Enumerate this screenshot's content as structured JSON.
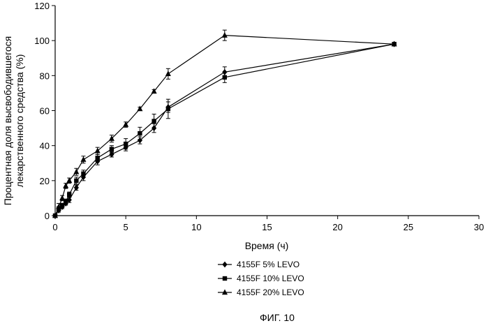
{
  "figure": {
    "caption": "ФИГ. 10"
  },
  "chart_data": {
    "type": "line",
    "title": "",
    "xlabel": "Время (ч)",
    "ylabel_lines": [
      "Процентная доля высвободившегося",
      "лекарственного средства (%)"
    ],
    "xlim": [
      0,
      30
    ],
    "ylim": [
      0,
      120
    ],
    "x_ticks": [
      0,
      5,
      10,
      15,
      20,
      25,
      30
    ],
    "x_tick_labels": [
      "0",
      "5",
      "10",
      "15",
      "20",
      "25",
      "30"
    ],
    "y_ticks": [
      0,
      20,
      40,
      60,
      80,
      100,
      120
    ],
    "y_tick_labels": [
      "0",
      "20",
      "40",
      "60",
      "80",
      "100",
      "120"
    ],
    "grid": false,
    "legend_position": "bottom-center",
    "line_color": "#000000",
    "series": [
      {
        "name": "4155F 5% LEVO",
        "marker": "diamond",
        "x": [
          0,
          0.25,
          0.5,
          0.75,
          1,
          1.5,
          2,
          3,
          4,
          5,
          6,
          7,
          8,
          12,
          24
        ],
        "y": [
          0,
          3,
          5,
          7,
          9,
          16,
          22,
          31,
          35,
          39,
          43,
          50,
          62,
          82,
          98
        ],
        "err": [
          0,
          1,
          1,
          1,
          1.5,
          1.5,
          2,
          2,
          1.5,
          2,
          2,
          2.5,
          3,
          3,
          1
        ]
      },
      {
        "name": "4155F 10% LEVO",
        "marker": "square",
        "x": [
          0,
          0.25,
          0.5,
          0.75,
          1,
          1.5,
          2,
          3,
          4,
          5,
          6,
          7,
          8,
          12,
          24
        ],
        "y": [
          0,
          4,
          6,
          8,
          12,
          20,
          24,
          33,
          38,
          41,
          47,
          54,
          61,
          79,
          98
        ],
        "err": [
          0,
          1,
          1,
          1.5,
          1.5,
          2,
          2,
          2,
          2,
          3,
          3.5,
          4,
          5.5,
          3,
          1
        ]
      },
      {
        "name": "4155F 20% LEVO",
        "marker": "triangle",
        "x": [
          0,
          0.25,
          0.5,
          0.75,
          1,
          1.5,
          2,
          3,
          4,
          5,
          6,
          7,
          8,
          12,
          24
        ],
        "y": [
          0,
          5,
          10,
          17,
          20,
          25,
          32,
          37,
          44,
          52,
          61,
          71,
          81,
          103,
          98
        ],
        "err": [
          0,
          2,
          1.5,
          1.5,
          1.5,
          2,
          2,
          2,
          2,
          1.5,
          1,
          1,
          3,
          3,
          1
        ]
      }
    ]
  }
}
